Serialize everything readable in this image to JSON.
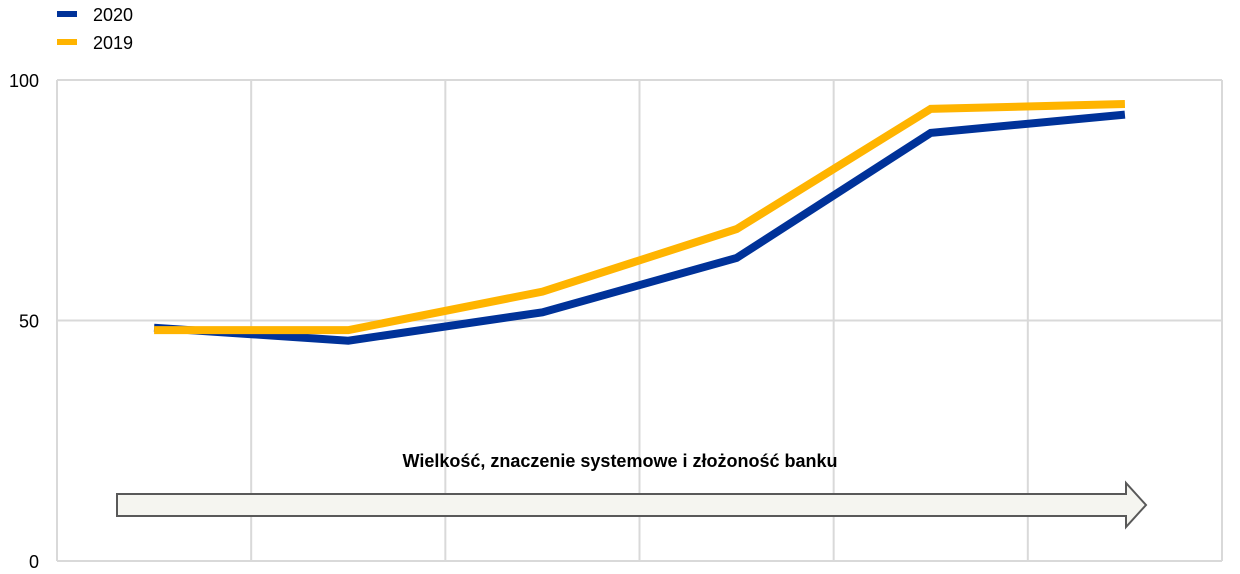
{
  "chart_data": {
    "type": "line",
    "title": "",
    "xlabel": "",
    "ylabel": "",
    "x": [
      1,
      2,
      3,
      4,
      5,
      6
    ],
    "ylim": [
      0,
      100
    ],
    "yticks": [
      0,
      50,
      100
    ],
    "grid": true,
    "legend_position": "top-left",
    "series": [
      {
        "name": "2020",
        "color": "#003299",
        "values": [
          48.5,
          45.8,
          51.7,
          63.0,
          89.0,
          92.8
        ]
      },
      {
        "name": "2019",
        "color": "#FFB400",
        "values": [
          48.0,
          48.0,
          56.0,
          69.0,
          94.0,
          95.0
        ]
      }
    ],
    "annotation": {
      "text": "Wielkość, znaczenie systemowe  i złożoność banku",
      "arrow": "right"
    }
  }
}
